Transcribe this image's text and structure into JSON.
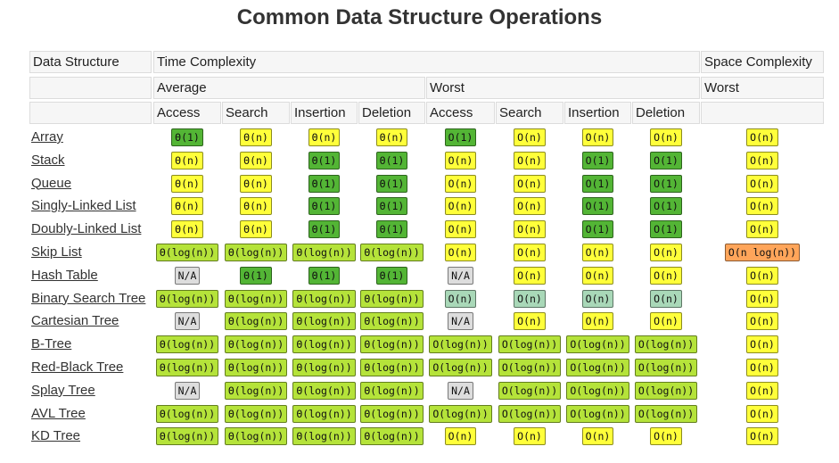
{
  "title": "Common Data Structure Operations",
  "columns": {
    "name": "Data Structure",
    "time": "Time Complexity",
    "space": "Space Complexity",
    "average": "Average",
    "worst": "Worst",
    "space_worst": "Worst",
    "operations": [
      "Access",
      "Search",
      "Insertion",
      "Deletion"
    ]
  },
  "rows": [
    {
      "name": "Array",
      "cells": [
        {
          "text": "Θ(1)",
          "color": "#53b535"
        },
        {
          "text": "Θ(n)",
          "color": "#ffff3a"
        },
        {
          "text": "Θ(n)",
          "color": "#ffff3a"
        },
        {
          "text": "Θ(n)",
          "color": "#ffff3a"
        },
        {
          "text": "O(1)",
          "color": "#53b535"
        },
        {
          "text": "O(n)",
          "color": "#ffff3a"
        },
        {
          "text": "O(n)",
          "color": "#ffff3a"
        },
        {
          "text": "O(n)",
          "color": "#ffff3a"
        },
        {
          "text": "O(n)",
          "color": "#ffff3a"
        }
      ]
    },
    {
      "name": "Stack",
      "cells": [
        {
          "text": "Θ(n)",
          "color": "#ffff3a"
        },
        {
          "text": "Θ(n)",
          "color": "#ffff3a"
        },
        {
          "text": "Θ(1)",
          "color": "#53b535"
        },
        {
          "text": "Θ(1)",
          "color": "#53b535"
        },
        {
          "text": "O(n)",
          "color": "#ffff3a"
        },
        {
          "text": "O(n)",
          "color": "#ffff3a"
        },
        {
          "text": "O(1)",
          "color": "#53b535"
        },
        {
          "text": "O(1)",
          "color": "#53b535"
        },
        {
          "text": "O(n)",
          "color": "#ffff3a"
        }
      ]
    },
    {
      "name": "Queue",
      "cells": [
        {
          "text": "Θ(n)",
          "color": "#ffff3a"
        },
        {
          "text": "Θ(n)",
          "color": "#ffff3a"
        },
        {
          "text": "Θ(1)",
          "color": "#53b535"
        },
        {
          "text": "Θ(1)",
          "color": "#53b535"
        },
        {
          "text": "O(n)",
          "color": "#ffff3a"
        },
        {
          "text": "O(n)",
          "color": "#ffff3a"
        },
        {
          "text": "O(1)",
          "color": "#53b535"
        },
        {
          "text": "O(1)",
          "color": "#53b535"
        },
        {
          "text": "O(n)",
          "color": "#ffff3a"
        }
      ]
    },
    {
      "name": "Singly-Linked List",
      "cells": [
        {
          "text": "Θ(n)",
          "color": "#ffff3a"
        },
        {
          "text": "Θ(n)",
          "color": "#ffff3a"
        },
        {
          "text": "Θ(1)",
          "color": "#53b535"
        },
        {
          "text": "Θ(1)",
          "color": "#53b535"
        },
        {
          "text": "O(n)",
          "color": "#ffff3a"
        },
        {
          "text": "O(n)",
          "color": "#ffff3a"
        },
        {
          "text": "O(1)",
          "color": "#53b535"
        },
        {
          "text": "O(1)",
          "color": "#53b535"
        },
        {
          "text": "O(n)",
          "color": "#ffff3a"
        }
      ]
    },
    {
      "name": "Doubly-Linked List",
      "cells": [
        {
          "text": "Θ(n)",
          "color": "#ffff3a"
        },
        {
          "text": "Θ(n)",
          "color": "#ffff3a"
        },
        {
          "text": "Θ(1)",
          "color": "#53b535"
        },
        {
          "text": "Θ(1)",
          "color": "#53b535"
        },
        {
          "text": "O(n)",
          "color": "#ffff3a"
        },
        {
          "text": "O(n)",
          "color": "#ffff3a"
        },
        {
          "text": "O(1)",
          "color": "#53b535"
        },
        {
          "text": "O(1)",
          "color": "#53b535"
        },
        {
          "text": "O(n)",
          "color": "#ffff3a"
        }
      ]
    },
    {
      "name": "Skip List",
      "cells": [
        {
          "text": "Θ(log(n))",
          "color": "#b5e33a"
        },
        {
          "text": "Θ(log(n))",
          "color": "#b5e33a"
        },
        {
          "text": "Θ(log(n))",
          "color": "#b5e33a"
        },
        {
          "text": "Θ(log(n))",
          "color": "#b5e33a"
        },
        {
          "text": "O(n)",
          "color": "#ffff3a"
        },
        {
          "text": "O(n)",
          "color": "#ffff3a"
        },
        {
          "text": "O(n)",
          "color": "#ffff3a"
        },
        {
          "text": "O(n)",
          "color": "#ffff3a"
        },
        {
          "text": "O(n log(n))",
          "color": "#ffa55a"
        }
      ]
    },
    {
      "name": "Hash Table",
      "cells": [
        {
          "text": "N/A",
          "color": "#dddddd"
        },
        {
          "text": "Θ(1)",
          "color": "#53b535"
        },
        {
          "text": "Θ(1)",
          "color": "#53b535"
        },
        {
          "text": "Θ(1)",
          "color": "#53b535"
        },
        {
          "text": "N/A",
          "color": "#dddddd"
        },
        {
          "text": "O(n)",
          "color": "#ffff3a"
        },
        {
          "text": "O(n)",
          "color": "#ffff3a"
        },
        {
          "text": "O(n)",
          "color": "#ffff3a"
        },
        {
          "text": "O(n)",
          "color": "#ffff3a"
        }
      ]
    },
    {
      "name": "Binary Search Tree",
      "cells": [
        {
          "text": "Θ(log(n))",
          "color": "#b5e33a"
        },
        {
          "text": "Θ(log(n))",
          "color": "#b5e33a"
        },
        {
          "text": "Θ(log(n))",
          "color": "#b5e33a"
        },
        {
          "text": "Θ(log(n))",
          "color": "#b5e33a"
        },
        {
          "text": "O(n)",
          "color": "#a9d8b8"
        },
        {
          "text": "O(n)",
          "color": "#a9d8b8"
        },
        {
          "text": "O(n)",
          "color": "#a9d8b8"
        },
        {
          "text": "O(n)",
          "color": "#a9d8b8"
        },
        {
          "text": "O(n)",
          "color": "#ffff3a"
        }
      ]
    },
    {
      "name": "Cartesian Tree",
      "cells": [
        {
          "text": "N/A",
          "color": "#dddddd"
        },
        {
          "text": "Θ(log(n))",
          "color": "#b5e33a"
        },
        {
          "text": "Θ(log(n))",
          "color": "#b5e33a"
        },
        {
          "text": "Θ(log(n))",
          "color": "#b5e33a"
        },
        {
          "text": "N/A",
          "color": "#dddddd"
        },
        {
          "text": "O(n)",
          "color": "#ffff3a"
        },
        {
          "text": "O(n)",
          "color": "#ffff3a"
        },
        {
          "text": "O(n)",
          "color": "#ffff3a"
        },
        {
          "text": "O(n)",
          "color": "#ffff3a"
        }
      ]
    },
    {
      "name": "B-Tree",
      "cells": [
        {
          "text": "Θ(log(n))",
          "color": "#b5e33a"
        },
        {
          "text": "Θ(log(n))",
          "color": "#b5e33a"
        },
        {
          "text": "Θ(log(n))",
          "color": "#b5e33a"
        },
        {
          "text": "Θ(log(n))",
          "color": "#b5e33a"
        },
        {
          "text": "O(log(n))",
          "color": "#b5e33a"
        },
        {
          "text": "O(log(n))",
          "color": "#b5e33a"
        },
        {
          "text": "O(log(n))",
          "color": "#b5e33a"
        },
        {
          "text": "O(log(n))",
          "color": "#b5e33a"
        },
        {
          "text": "O(n)",
          "color": "#ffff3a"
        }
      ]
    },
    {
      "name": "Red-Black Tree",
      "cells": [
        {
          "text": "Θ(log(n))",
          "color": "#b5e33a"
        },
        {
          "text": "Θ(log(n))",
          "color": "#b5e33a"
        },
        {
          "text": "Θ(log(n))",
          "color": "#b5e33a"
        },
        {
          "text": "Θ(log(n))",
          "color": "#b5e33a"
        },
        {
          "text": "O(log(n))",
          "color": "#b5e33a"
        },
        {
          "text": "O(log(n))",
          "color": "#b5e33a"
        },
        {
          "text": "O(log(n))",
          "color": "#b5e33a"
        },
        {
          "text": "O(log(n))",
          "color": "#b5e33a"
        },
        {
          "text": "O(n)",
          "color": "#ffff3a"
        }
      ]
    },
    {
      "name": "Splay Tree",
      "cells": [
        {
          "text": "N/A",
          "color": "#dddddd"
        },
        {
          "text": "Θ(log(n))",
          "color": "#b5e33a"
        },
        {
          "text": "Θ(log(n))",
          "color": "#b5e33a"
        },
        {
          "text": "Θ(log(n))",
          "color": "#b5e33a"
        },
        {
          "text": "N/A",
          "color": "#dddddd"
        },
        {
          "text": "O(log(n))",
          "color": "#b5e33a"
        },
        {
          "text": "O(log(n))",
          "color": "#b5e33a"
        },
        {
          "text": "O(log(n))",
          "color": "#b5e33a"
        },
        {
          "text": "O(n)",
          "color": "#ffff3a"
        }
      ]
    },
    {
      "name": "AVL Tree",
      "cells": [
        {
          "text": "Θ(log(n))",
          "color": "#b5e33a"
        },
        {
          "text": "Θ(log(n))",
          "color": "#b5e33a"
        },
        {
          "text": "Θ(log(n))",
          "color": "#b5e33a"
        },
        {
          "text": "Θ(log(n))",
          "color": "#b5e33a"
        },
        {
          "text": "O(log(n))",
          "color": "#b5e33a"
        },
        {
          "text": "O(log(n))",
          "color": "#b5e33a"
        },
        {
          "text": "O(log(n))",
          "color": "#b5e33a"
        },
        {
          "text": "O(log(n))",
          "color": "#b5e33a"
        },
        {
          "text": "O(n)",
          "color": "#ffff3a"
        }
      ]
    },
    {
      "name": "KD Tree",
      "cells": [
        {
          "text": "Θ(log(n))",
          "color": "#b5e33a"
        },
        {
          "text": "Θ(log(n))",
          "color": "#b5e33a"
        },
        {
          "text": "Θ(log(n))",
          "color": "#b5e33a"
        },
        {
          "text": "Θ(log(n))",
          "color": "#b5e33a"
        },
        {
          "text": "O(n)",
          "color": "#ffff3a"
        },
        {
          "text": "O(n)",
          "color": "#ffff3a"
        },
        {
          "text": "O(n)",
          "color": "#ffff3a"
        },
        {
          "text": "O(n)",
          "color": "#ffff3a"
        },
        {
          "text": "O(n)",
          "color": "#ffff3a"
        }
      ]
    }
  ]
}
